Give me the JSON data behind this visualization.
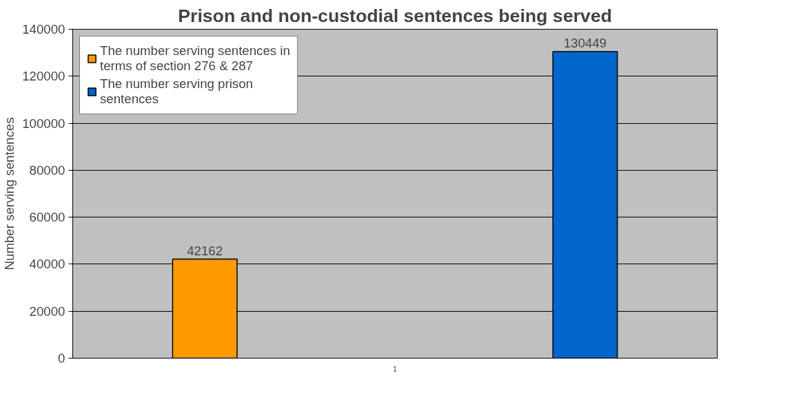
{
  "chart_data": {
    "type": "bar",
    "title": "Prison and non-custodial sentences being served",
    "ylabel": "Number serving sentences",
    "categories": [
      "1"
    ],
    "series": [
      {
        "name": "The number serving sentences in terms of section 276 & 287",
        "color": "#ff9900",
        "values": [
          42162
        ]
      },
      {
        "name": "The number serving prison sentences",
        "color": "#0066cc",
        "values": [
          130449
        ]
      }
    ],
    "ylim": [
      0,
      140000
    ],
    "yticks": [
      0,
      20000,
      40000,
      60000,
      80000,
      100000,
      120000,
      140000
    ],
    "grid": "y",
    "legend": "top left",
    "data_labels": true
  }
}
